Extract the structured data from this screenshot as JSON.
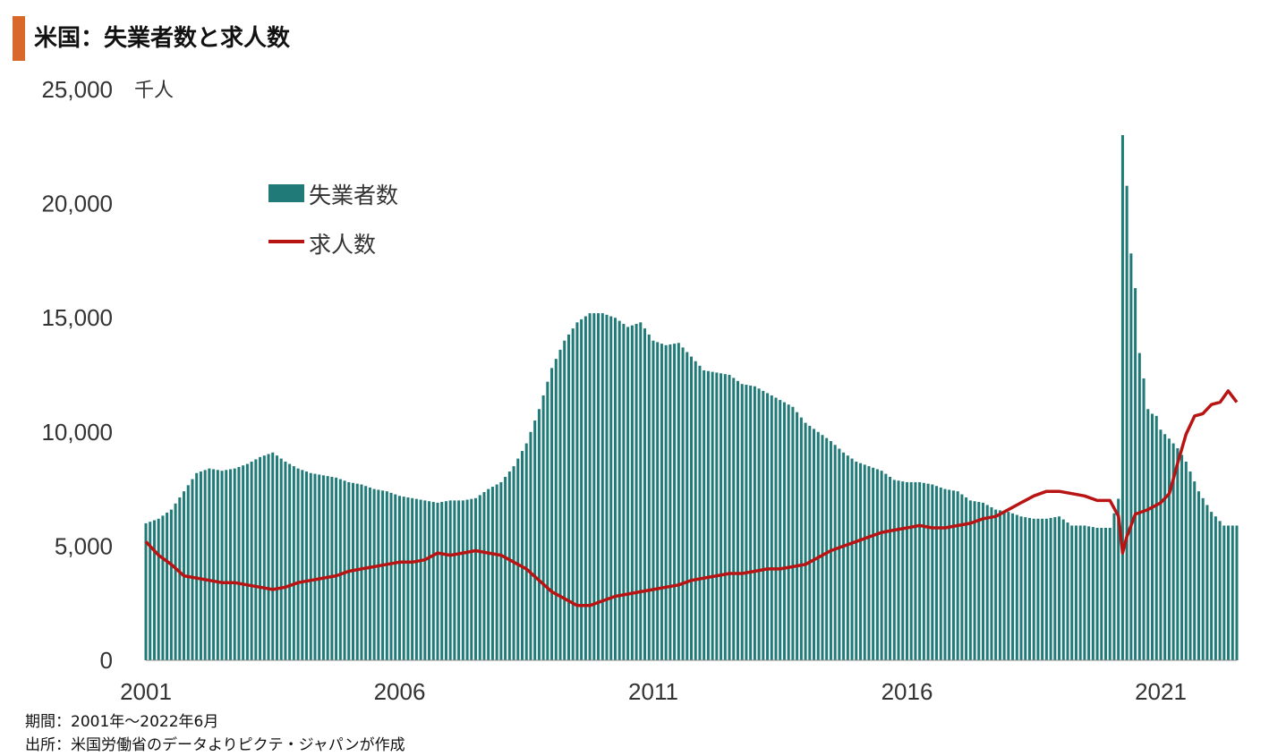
{
  "title": "米国：失業者数と求人数",
  "footnotes": {
    "period": "期間：2001年〜2022年6月",
    "source": "出所：米国労働省のデータよりピクテ・ジャパンが作成"
  },
  "colors": {
    "accent": "#d9692b",
    "unemployed": "#1f7a78",
    "openings": "#b81414"
  },
  "chart_data": {
    "type": "bar",
    "unit_label": "千人",
    "ylim": [
      0,
      25000
    ],
    "y_ticks": [
      "0",
      "5,000",
      "10,000",
      "15,000",
      "20,000",
      "25,000"
    ],
    "y_tick_values": [
      0,
      5000,
      10000,
      15000,
      20000,
      25000
    ],
    "x_ticks": [
      "2001",
      "2006",
      "2011",
      "2016",
      "2021"
    ],
    "x_tick_values": [
      2001,
      2006,
      2011,
      2016,
      2021
    ],
    "xlim": [
      2001.0,
      2022.5
    ],
    "legend": [
      "失業者数",
      "求人数"
    ],
    "legend_placement": "top-left",
    "grid": false,
    "series": [
      {
        "name": "失業者数",
        "kind": "bar",
        "points": [
          [
            2001.0,
            6000
          ],
          [
            2001.25,
            6200
          ],
          [
            2001.5,
            6600
          ],
          [
            2001.75,
            7400
          ],
          [
            2002.0,
            8200
          ],
          [
            2002.25,
            8400
          ],
          [
            2002.5,
            8300
          ],
          [
            2002.75,
            8400
          ],
          [
            2003.0,
            8600
          ],
          [
            2003.25,
            8900
          ],
          [
            2003.5,
            9100
          ],
          [
            2003.75,
            8700
          ],
          [
            2004.0,
            8400
          ],
          [
            2004.25,
            8200
          ],
          [
            2004.5,
            8100
          ],
          [
            2004.75,
            8000
          ],
          [
            2005.0,
            7800
          ],
          [
            2005.25,
            7700
          ],
          [
            2005.5,
            7500
          ],
          [
            2005.75,
            7400
          ],
          [
            2006.0,
            7200
          ],
          [
            2006.25,
            7100
          ],
          [
            2006.5,
            7000
          ],
          [
            2006.75,
            6900
          ],
          [
            2007.0,
            7000
          ],
          [
            2007.25,
            7000
          ],
          [
            2007.5,
            7100
          ],
          [
            2007.75,
            7500
          ],
          [
            2008.0,
            7800
          ],
          [
            2008.25,
            8500
          ],
          [
            2008.5,
            9500
          ],
          [
            2008.75,
            11000
          ],
          [
            2009.0,
            12800
          ],
          [
            2009.25,
            14000
          ],
          [
            2009.5,
            14800
          ],
          [
            2009.75,
            15200
          ],
          [
            2010.0,
            15200
          ],
          [
            2010.25,
            15000
          ],
          [
            2010.5,
            14600
          ],
          [
            2010.75,
            14800
          ],
          [
            2011.0,
            14000
          ],
          [
            2011.25,
            13800
          ],
          [
            2011.5,
            13900
          ],
          [
            2011.75,
            13300
          ],
          [
            2012.0,
            12700
          ],
          [
            2012.25,
            12600
          ],
          [
            2012.5,
            12500
          ],
          [
            2012.75,
            12100
          ],
          [
            2013.0,
            12000
          ],
          [
            2013.25,
            11700
          ],
          [
            2013.5,
            11400
          ],
          [
            2013.75,
            11100
          ],
          [
            2014.0,
            10400
          ],
          [
            2014.25,
            10000
          ],
          [
            2014.5,
            9600
          ],
          [
            2014.75,
            9100
          ],
          [
            2015.0,
            8700
          ],
          [
            2015.25,
            8500
          ],
          [
            2015.5,
            8300
          ],
          [
            2015.75,
            7900
          ],
          [
            2016.0,
            7800
          ],
          [
            2016.25,
            7800
          ],
          [
            2016.5,
            7700
          ],
          [
            2016.75,
            7500
          ],
          [
            2017.0,
            7400
          ],
          [
            2017.25,
            7000
          ],
          [
            2017.5,
            6900
          ],
          [
            2017.75,
            6600
          ],
          [
            2018.0,
            6500
          ],
          [
            2018.25,
            6300
          ],
          [
            2018.5,
            6200
          ],
          [
            2018.75,
            6200
          ],
          [
            2019.0,
            6300
          ],
          [
            2019.25,
            5900
          ],
          [
            2019.5,
            5900
          ],
          [
            2019.75,
            5800
          ],
          [
            2020.0,
            5800
          ],
          [
            2020.17,
            7100
          ],
          [
            2020.25,
            23000
          ],
          [
            2020.33,
            20900
          ],
          [
            2020.42,
            17700
          ],
          [
            2020.5,
            16300
          ],
          [
            2020.58,
            13500
          ],
          [
            2020.67,
            12300
          ],
          [
            2020.75,
            11000
          ],
          [
            2020.83,
            10800
          ],
          [
            2020.92,
            10700
          ],
          [
            2021.0,
            10100
          ],
          [
            2021.17,
            9700
          ],
          [
            2021.33,
            9300
          ],
          [
            2021.5,
            8700
          ],
          [
            2021.75,
            7400
          ],
          [
            2022.0,
            6500
          ],
          [
            2022.25,
            5900
          ],
          [
            2022.5,
            5900
          ]
        ]
      },
      {
        "name": "求人数",
        "kind": "line",
        "points": [
          [
            2001.0,
            5200
          ],
          [
            2001.25,
            4600
          ],
          [
            2001.5,
            4200
          ],
          [
            2001.75,
            3700
          ],
          [
            2002.0,
            3600
          ],
          [
            2002.25,
            3500
          ],
          [
            2002.5,
            3400
          ],
          [
            2002.75,
            3400
          ],
          [
            2003.0,
            3300
          ],
          [
            2003.25,
            3200
          ],
          [
            2003.5,
            3100
          ],
          [
            2003.75,
            3200
          ],
          [
            2004.0,
            3400
          ],
          [
            2004.25,
            3500
          ],
          [
            2004.5,
            3600
          ],
          [
            2004.75,
            3700
          ],
          [
            2005.0,
            3900
          ],
          [
            2005.25,
            4000
          ],
          [
            2005.5,
            4100
          ],
          [
            2005.75,
            4200
          ],
          [
            2006.0,
            4300
          ],
          [
            2006.25,
            4300
          ],
          [
            2006.5,
            4400
          ],
          [
            2006.75,
            4700
          ],
          [
            2007.0,
            4600
          ],
          [
            2007.25,
            4700
          ],
          [
            2007.5,
            4800
          ],
          [
            2007.75,
            4700
          ],
          [
            2008.0,
            4600
          ],
          [
            2008.25,
            4300
          ],
          [
            2008.5,
            4000
          ],
          [
            2008.75,
            3500
          ],
          [
            2009.0,
            3000
          ],
          [
            2009.25,
            2700
          ],
          [
            2009.5,
            2400
          ],
          [
            2009.75,
            2400
          ],
          [
            2010.0,
            2600
          ],
          [
            2010.25,
            2800
          ],
          [
            2010.5,
            2900
          ],
          [
            2010.75,
            3000
          ],
          [
            2011.0,
            3100
          ],
          [
            2011.25,
            3200
          ],
          [
            2011.5,
            3300
          ],
          [
            2011.75,
            3500
          ],
          [
            2012.0,
            3600
          ],
          [
            2012.25,
            3700
          ],
          [
            2012.5,
            3800
          ],
          [
            2012.75,
            3800
          ],
          [
            2013.0,
            3900
          ],
          [
            2013.25,
            4000
          ],
          [
            2013.5,
            4000
          ],
          [
            2013.75,
            4100
          ],
          [
            2014.0,
            4200
          ],
          [
            2014.25,
            4500
          ],
          [
            2014.5,
            4800
          ],
          [
            2014.75,
            5000
          ],
          [
            2015.0,
            5200
          ],
          [
            2015.25,
            5400
          ],
          [
            2015.5,
            5600
          ],
          [
            2015.75,
            5700
          ],
          [
            2016.0,
            5800
          ],
          [
            2016.25,
            5900
          ],
          [
            2016.5,
            5800
          ],
          [
            2016.75,
            5800
          ],
          [
            2017.0,
            5900
          ],
          [
            2017.25,
            6000
          ],
          [
            2017.5,
            6200
          ],
          [
            2017.75,
            6300
          ],
          [
            2018.0,
            6600
          ],
          [
            2018.25,
            6900
          ],
          [
            2018.5,
            7200
          ],
          [
            2018.75,
            7400
          ],
          [
            2019.0,
            7400
          ],
          [
            2019.25,
            7300
          ],
          [
            2019.5,
            7200
          ],
          [
            2019.75,
            7000
          ],
          [
            2020.0,
            7000
          ],
          [
            2020.17,
            6300
          ],
          [
            2020.25,
            4700
          ],
          [
            2020.33,
            5400
          ],
          [
            2020.5,
            6400
          ],
          [
            2020.75,
            6600
          ],
          [
            2021.0,
            6900
          ],
          [
            2021.17,
            7300
          ],
          [
            2021.33,
            8600
          ],
          [
            2021.5,
            9900
          ],
          [
            2021.67,
            10700
          ],
          [
            2021.83,
            10800
          ],
          [
            2022.0,
            11200
          ],
          [
            2022.17,
            11300
          ],
          [
            2022.33,
            11800
          ],
          [
            2022.5,
            11300
          ]
        ]
      }
    ]
  }
}
